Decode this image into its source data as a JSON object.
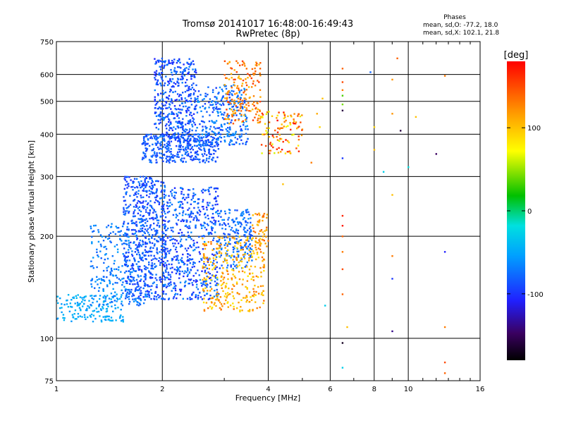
{
  "chart_data": {
    "type": "scatter",
    "title": "Tromsø 20141017 16:48:00-16:49:43",
    "subtitle": "RwPretec (8p)",
    "xlabel": "Frequency [MHz]",
    "ylabel": "Stationary phase Virtual Height [km]",
    "x_scale": "log",
    "y_scale": "log",
    "xlim": [
      1,
      16
    ],
    "ylim": [
      75,
      750
    ],
    "x_ticks": [
      {
        "value": 1,
        "label": "1"
      },
      {
        "value": 2,
        "label": "2"
      },
      {
        "value": 4,
        "label": "4"
      },
      {
        "value": 6,
        "label": "6"
      },
      {
        "value": 8,
        "label": "8"
      },
      {
        "value": 10,
        "label": "10"
      },
      {
        "value": 16,
        "label": "16"
      }
    ],
    "y_ticks": [
      {
        "value": 75,
        "label": "75"
      },
      {
        "value": 100,
        "label": "100"
      },
      {
        "value": 200,
        "label": "200"
      },
      {
        "value": 300,
        "label": "300"
      },
      {
        "value": 400,
        "label": "400"
      },
      {
        "value": 500,
        "label": "500"
      },
      {
        "value": 600,
        "label": "600"
      },
      {
        "value": 750,
        "label": "750"
      }
    ],
    "grid": true,
    "legend": {
      "title": "Phases",
      "line1": "mean, sd,O: -77.2, 18.0",
      "line2": "mean, sd,X: 102.1, 21.8"
    },
    "colorbar": {
      "label": "[deg]",
      "range": [
        -180,
        180
      ],
      "ticks": [
        {
          "value": 100,
          "label": "100"
        },
        {
          "value": 0,
          "label": "0"
        },
        {
          "value": -100,
          "label": "-100"
        }
      ]
    },
    "clusters": [
      {
        "f_range": [
          1.0,
          1.55
        ],
        "h_range": [
          112,
          135
        ],
        "phase_range": [
          -60,
          -40
        ],
        "count": 160
      },
      {
        "f_range": [
          1.25,
          1.8
        ],
        "h_range": [
          125,
          220
        ],
        "phase_range": [
          -85,
          -55
        ],
        "count": 260
      },
      {
        "f_range": [
          1.55,
          2.05
        ],
        "h_range": [
          130,
          300
        ],
        "phase_range": [
          -105,
          -70
        ],
        "count": 620
      },
      {
        "f_range": [
          2.0,
          2.9
        ],
        "h_range": [
          130,
          280
        ],
        "phase_range": [
          -110,
          -60
        ],
        "count": 560
      },
      {
        "f_range": [
          2.9,
          3.6
        ],
        "h_range": [
          160,
          240
        ],
        "phase_range": [
          -95,
          -60
        ],
        "count": 200
      },
      {
        "f_range": [
          2.6,
          3.9
        ],
        "h_range": [
          120,
          200
        ],
        "phase_range": [
          80,
          135
        ],
        "count": 320
      },
      {
        "f_range": [
          3.6,
          4.0
        ],
        "h_range": [
          185,
          235
        ],
        "phase_range": [
          100,
          145
        ],
        "count": 50
      },
      {
        "f_range": [
          1.75,
          2.9
        ],
        "h_range": [
          330,
          400
        ],
        "phase_range": [
          -100,
          -70
        ],
        "count": 360
      },
      {
        "f_range": [
          1.9,
          2.5
        ],
        "h_range": [
          380,
          670
        ],
        "phase_range": [
          -110,
          -65
        ],
        "count": 440
      },
      {
        "f_range": [
          2.5,
          3.5
        ],
        "h_range": [
          370,
          560
        ],
        "phase_range": [
          -100,
          -55
        ],
        "count": 280
      },
      {
        "f_range": [
          3.0,
          3.8
        ],
        "h_range": [
          430,
          660
        ],
        "phase_range": [
          100,
          160
        ],
        "count": 170
      },
      {
        "f_range": [
          3.8,
          5.0
        ],
        "h_range": [
          350,
          470
        ],
        "phase_range": [
          60,
          180
        ],
        "count": 110
      }
    ],
    "points": [
      {
        "x": 6.5,
        "y": 97,
        "phase": -170
      },
      {
        "x": 6.5,
        "y": 82,
        "phase": -30
      },
      {
        "x": 6.5,
        "y": 135,
        "phase": 140
      },
      {
        "x": 6.5,
        "y": 160,
        "phase": 150
      },
      {
        "x": 6.5,
        "y": 180,
        "phase": 130
      },
      {
        "x": 6.5,
        "y": 200,
        "phase": 140
      },
      {
        "x": 6.5,
        "y": 215,
        "phase": 170
      },
      {
        "x": 6.5,
        "y": 230,
        "phase": 165
      },
      {
        "x": 6.5,
        "y": 340,
        "phase": -100
      },
      {
        "x": 6.5,
        "y": 470,
        "phase": -160
      },
      {
        "x": 6.5,
        "y": 490,
        "phase": 40
      },
      {
        "x": 6.5,
        "y": 520,
        "phase": 30
      },
      {
        "x": 6.5,
        "y": 540,
        "phase": 130
      },
      {
        "x": 6.5,
        "y": 570,
        "phase": 150
      },
      {
        "x": 6.5,
        "y": 625,
        "phase": 140
      },
      {
        "x": 6.7,
        "y": 108,
        "phase": 100
      },
      {
        "x": 5.5,
        "y": 460,
        "phase": 110
      },
      {
        "x": 5.6,
        "y": 420,
        "phase": 90
      },
      {
        "x": 5.3,
        "y": 330,
        "phase": 130
      },
      {
        "x": 5.7,
        "y": 510,
        "phase": 100
      },
      {
        "x": 5.8,
        "y": 125,
        "phase": -30
      },
      {
        "x": 4.4,
        "y": 285,
        "phase": 100
      },
      {
        "x": 7.8,
        "y": 610,
        "phase": -80
      },
      {
        "x": 8.0,
        "y": 420,
        "phase": 90
      },
      {
        "x": 8.0,
        "y": 360,
        "phase": 100
      },
      {
        "x": 8.5,
        "y": 310,
        "phase": -30
      },
      {
        "x": 9.0,
        "y": 105,
        "phase": -140
      },
      {
        "x": 9.0,
        "y": 150,
        "phase": -100
      },
      {
        "x": 9.0,
        "y": 175,
        "phase": 130
      },
      {
        "x": 9.0,
        "y": 265,
        "phase": 100
      },
      {
        "x": 9.0,
        "y": 460,
        "phase": 120
      },
      {
        "x": 9.0,
        "y": 580,
        "phase": 120
      },
      {
        "x": 9.3,
        "y": 670,
        "phase": 140
      },
      {
        "x": 9.5,
        "y": 410,
        "phase": -160
      },
      {
        "x": 10.5,
        "y": 450,
        "phase": 100
      },
      {
        "x": 10.0,
        "y": 320,
        "phase": -20
      },
      {
        "x": 12.0,
        "y": 350,
        "phase": -150
      },
      {
        "x": 12.7,
        "y": 108,
        "phase": 130
      },
      {
        "x": 12.7,
        "y": 85,
        "phase": 150
      },
      {
        "x": 12.7,
        "y": 79,
        "phase": 140
      },
      {
        "x": 12.7,
        "y": 180,
        "phase": -110
      },
      {
        "x": 12.7,
        "y": 595,
        "phase": 130
      }
    ]
  }
}
